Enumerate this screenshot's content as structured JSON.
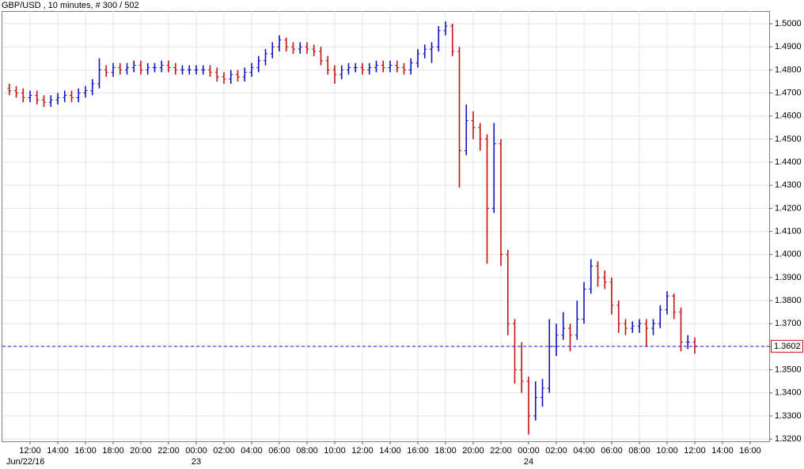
{
  "chart_data": {
    "type": "ohlc",
    "title": "GBP/USD , 10 minutes, # 300 / 502",
    "categories": [
      null,
      null,
      null,
      null,
      "12:00",
      null,
      null,
      null,
      "14:00",
      null,
      null,
      null,
      "16:00",
      null,
      null,
      null,
      "18:00",
      null,
      null,
      null,
      "20:00",
      null,
      null,
      null,
      "22:00",
      null,
      null,
      null,
      "00:00",
      null,
      null,
      null,
      "02:00",
      null,
      null,
      null,
      "04:00",
      null,
      null,
      null,
      "06:00",
      null,
      null,
      null,
      "08:00",
      null,
      null,
      null,
      "10:00",
      null,
      null,
      null,
      "12:00",
      null,
      null,
      null,
      "14:00",
      null,
      null,
      null,
      "16:00",
      null,
      null,
      null,
      "18:00",
      null,
      null,
      null,
      "20:00",
      null,
      null,
      null,
      "22:00",
      null,
      null,
      null,
      "00:00",
      null,
      null,
      null,
      "02:00",
      null,
      null,
      null,
      "04:00",
      null,
      null,
      null,
      "06:00",
      null,
      null,
      null,
      "08:00",
      null,
      null,
      null,
      "10:00",
      null,
      null,
      null,
      "12:00",
      null,
      null,
      null,
      "14:00",
      null,
      null,
      null,
      "16:00",
      null,
      null
    ],
    "date_labels": [
      null,
      null,
      null,
      null,
      "Jun/22/16",
      null,
      null,
      null,
      null,
      null,
      null,
      null,
      null,
      null,
      null,
      null,
      null,
      null,
      null,
      null,
      null,
      null,
      null,
      null,
      null,
      null,
      null,
      null,
      "23",
      null,
      null,
      null,
      null,
      null,
      null,
      null,
      null,
      null,
      null,
      null,
      null,
      null,
      null,
      null,
      null,
      null,
      null,
      null,
      null,
      null,
      null,
      null,
      null,
      null,
      null,
      null,
      null,
      null,
      null,
      null,
      null,
      null,
      null,
      null,
      null,
      null,
      null,
      null,
      null,
      null,
      null,
      null,
      null,
      null,
      null,
      null,
      "24",
      null,
      null,
      null,
      null,
      null,
      null,
      null,
      null,
      null,
      null,
      null,
      null,
      null,
      null,
      null,
      null,
      null,
      null,
      null,
      null,
      null,
      null,
      null,
      null,
      null,
      null,
      null,
      null,
      null,
      null,
      null,
      null,
      null,
      null,
      null,
      null,
      null,
      null
    ],
    "open": [
      null,
      1.472,
      1.471,
      1.47,
      1.468,
      1.469,
      1.467,
      1.466,
      1.467,
      1.468,
      1.469,
      1.468,
      1.47,
      1.471,
      1.474,
      1.48,
      1.479,
      1.481,
      1.48,
      1.481,
      1.482,
      1.48,
      1.481,
      1.481,
      1.482,
      1.481,
      1.48,
      1.48,
      1.48,
      1.48,
      1.48,
      1.479,
      1.477,
      1.476,
      1.478,
      1.477,
      1.479,
      1.481,
      1.484,
      1.487,
      1.49,
      1.493,
      1.49,
      1.489,
      1.49,
      1.489,
      1.488,
      1.484,
      1.48,
      1.478,
      1.48,
      1.481,
      1.481,
      1.48,
      1.481,
      1.482,
      1.481,
      1.482,
      1.481,
      1.48,
      1.483,
      1.487,
      1.489,
      1.49,
      1.497,
      1.499,
      1.488,
      1.445,
      1.458,
      1.455,
      1.45,
      1.42,
      1.448,
      1.4,
      1.37,
      1.35,
      1.345,
      1.33,
      1.338,
      1.342,
      1.36,
      1.365,
      1.368,
      1.365,
      1.372,
      1.385,
      1.395,
      1.39,
      1.388,
      1.378,
      1.37,
      1.368,
      1.369,
      1.37,
      1.368,
      1.37,
      1.376,
      1.382,
      1.375,
      1.362,
      1.362,
      null,
      null,
      null,
      null,
      null,
      null,
      null,
      null,
      null,
      null
    ],
    "high": [
      null,
      1.474,
      1.473,
      1.472,
      1.471,
      1.471,
      1.469,
      1.469,
      1.47,
      1.471,
      1.471,
      1.472,
      1.473,
      1.476,
      1.485,
      1.482,
      1.483,
      1.483,
      1.483,
      1.484,
      1.484,
      1.483,
      1.483,
      1.484,
      1.484,
      1.483,
      1.482,
      1.482,
      1.482,
      1.482,
      1.482,
      1.481,
      1.479,
      1.48,
      1.48,
      1.481,
      1.483,
      1.486,
      1.489,
      1.492,
      1.495,
      1.494,
      1.492,
      1.492,
      1.492,
      1.491,
      1.49,
      1.486,
      1.482,
      1.482,
      1.483,
      1.483,
      1.483,
      1.483,
      1.484,
      1.484,
      1.484,
      1.484,
      1.483,
      1.485,
      1.489,
      1.491,
      1.492,
      1.499,
      1.501,
      1.5,
      1.49,
      1.465,
      1.462,
      1.457,
      1.452,
      1.457,
      1.45,
      1.402,
      1.372,
      1.362,
      1.347,
      1.345,
      1.346,
      1.372,
      1.37,
      1.375,
      1.37,
      1.38,
      1.388,
      1.398,
      1.397,
      1.393,
      1.39,
      1.38,
      1.372,
      1.371,
      1.372,
      1.372,
      1.372,
      1.378,
      1.384,
      1.383,
      1.377,
      1.365,
      1.364,
      null,
      null,
      null,
      null,
      null,
      null,
      null,
      null,
      null,
      null
    ],
    "low": [
      null,
      1.469,
      1.468,
      1.466,
      1.466,
      1.465,
      1.464,
      1.464,
      1.465,
      1.466,
      1.466,
      1.466,
      1.468,
      1.469,
      1.472,
      1.477,
      1.477,
      1.478,
      1.478,
      1.479,
      1.478,
      1.478,
      1.479,
      1.479,
      1.479,
      1.478,
      1.478,
      1.478,
      1.478,
      1.478,
      1.477,
      1.475,
      1.474,
      1.474,
      1.475,
      1.475,
      1.477,
      1.479,
      1.482,
      1.485,
      1.488,
      1.488,
      1.487,
      1.487,
      1.487,
      1.486,
      1.482,
      1.478,
      1.474,
      1.476,
      1.478,
      1.479,
      1.478,
      1.478,
      1.479,
      1.479,
      1.479,
      1.479,
      1.478,
      1.478,
      1.481,
      1.485,
      1.483,
      1.488,
      1.495,
      1.486,
      1.429,
      1.443,
      1.45,
      1.445,
      1.396,
      1.418,
      1.395,
      1.365,
      1.344,
      1.34,
      1.322,
      1.328,
      1.334,
      1.34,
      1.356,
      1.363,
      1.358,
      1.363,
      1.37,
      1.383,
      1.386,
      1.385,
      1.374,
      1.366,
      1.365,
      1.366,
      1.366,
      1.36,
      1.365,
      1.368,
      1.374,
      1.372,
      1.358,
      1.359,
      1.357,
      null,
      null,
      null,
      null,
      null,
      null,
      null,
      null,
      null,
      null
    ],
    "close": [
      null,
      1.471,
      1.47,
      1.468,
      1.469,
      1.467,
      1.466,
      1.467,
      1.468,
      1.469,
      1.468,
      1.47,
      1.471,
      1.474,
      1.48,
      1.479,
      1.481,
      1.48,
      1.481,
      1.482,
      1.48,
      1.481,
      1.481,
      1.482,
      1.481,
      1.48,
      1.48,
      1.48,
      1.48,
      1.48,
      1.479,
      1.477,
      1.476,
      1.478,
      1.477,
      1.479,
      1.481,
      1.484,
      1.487,
      1.49,
      1.493,
      1.49,
      1.489,
      1.49,
      1.489,
      1.488,
      1.484,
      1.48,
      1.478,
      1.48,
      1.481,
      1.481,
      1.48,
      1.481,
      1.482,
      1.481,
      1.482,
      1.481,
      1.48,
      1.483,
      1.487,
      1.489,
      1.49,
      1.497,
      1.499,
      1.488,
      1.445,
      1.458,
      1.455,
      1.45,
      1.42,
      1.448,
      1.4,
      1.37,
      1.35,
      1.345,
      1.33,
      1.338,
      1.342,
      1.36,
      1.365,
      1.368,
      1.365,
      1.372,
      1.385,
      1.395,
      1.39,
      1.388,
      1.378,
      1.37,
      1.368,
      1.369,
      1.37,
      1.368,
      1.37,
      1.376,
      1.382,
      1.375,
      1.362,
      1.362,
      1.36,
      null,
      null,
      null,
      null,
      null,
      null,
      null,
      null,
      null,
      null
    ],
    "up_color": "#1010c0",
    "down_color": "#c01010",
    "last_price": 1.3602,
    "last_price_color": "#2020e0",
    "ylim": [
      1.319,
      1.5055
    ],
    "yticks": [
      {
        "value": 1.32,
        "label": "1.3200"
      },
      {
        "value": 1.33,
        "label": "1.3300"
      },
      {
        "value": 1.34,
        "label": "1.3400"
      },
      {
        "value": 1.35,
        "label": "1.3500"
      },
      {
        "value": 1.36,
        "label": "1.3600"
      },
      {
        "value": 1.37,
        "label": "1.3700"
      },
      {
        "value": 1.38,
        "label": "1.3800"
      },
      {
        "value": 1.39,
        "label": "1.3900"
      },
      {
        "value": 1.4,
        "label": "1.4000"
      },
      {
        "value": 1.41,
        "label": "1.4100"
      },
      {
        "value": 1.42,
        "label": "1.4200"
      },
      {
        "value": 1.43,
        "label": "1.4300"
      },
      {
        "value": 1.44,
        "label": "1.4400"
      },
      {
        "value": 1.45,
        "label": "1.4500"
      },
      {
        "value": 1.46,
        "label": "1.4600"
      },
      {
        "value": 1.47,
        "label": "1.4700"
      },
      {
        "value": 1.48,
        "label": "1.4800"
      },
      {
        "value": 1.49,
        "label": "1.4900"
      },
      {
        "value": 1.5,
        "label": "1.5000"
      }
    ],
    "grid": true
  }
}
